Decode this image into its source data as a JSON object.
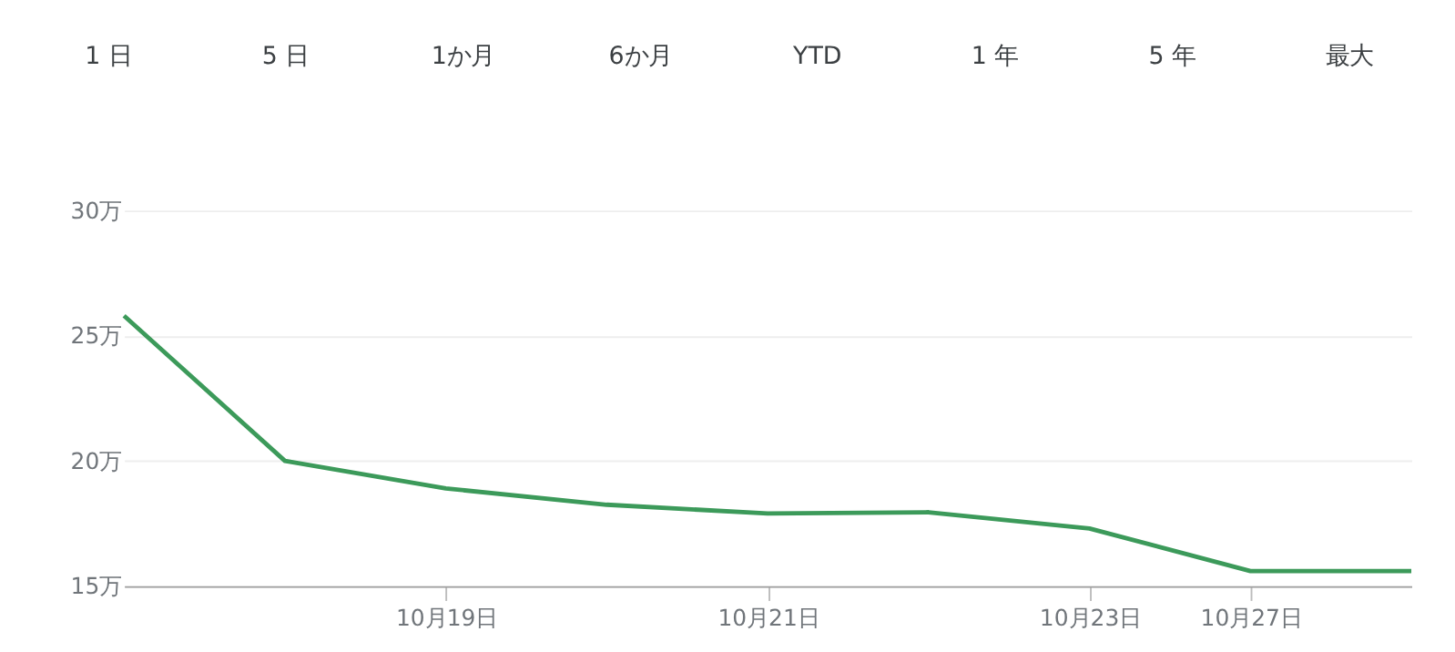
{
  "chart_data": {
    "type": "line",
    "annotations": [
      "1 日",
      "5 日",
      "1か月",
      "6か月",
      "YTD",
      "1 年",
      "5 年",
      "最大"
    ],
    "categories": [
      null,
      null,
      "10月19日",
      null,
      "10月21日",
      null,
      "10月23日",
      "10月27日",
      null
    ],
    "series": [
      {
        "color": "#3c9a5a",
        "values": [
          25.8,
          20.0,
          18.9,
          18.25,
          17.9,
          17.95,
          17.3,
          15.6,
          15.6
        ]
      }
    ],
    "ylim": [
      15,
      30
    ],
    "yticks": [
      {
        "value": 15,
        "label": "15万"
      },
      {
        "value": 20,
        "label": "20万"
      },
      {
        "value": 25,
        "label": "25万"
      },
      {
        "value": 30,
        "label": "30万"
      }
    ],
    "grid": "y",
    "marker": "none",
    "line_style": "solid"
  }
}
